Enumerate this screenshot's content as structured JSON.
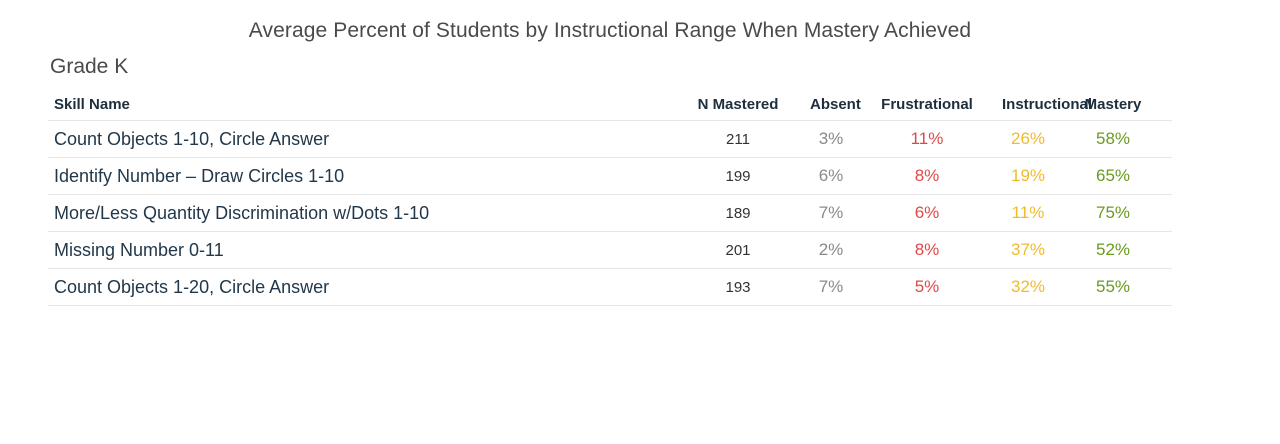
{
  "chart_data": {
    "type": "table",
    "title": "Average Percent of Students by Instructional Range When Mastery Achieved",
    "subtitle": "Grade K",
    "columns": [
      "Skill Name",
      "N Mastered",
      "Absent",
      "Frustrational",
      "Instructional",
      "Mastery"
    ],
    "rows": [
      {
        "skill": "Count Objects 1-10, Circle Answer",
        "n": "211",
        "absent": "3%",
        "frustrational": "11%",
        "instructional": "26%",
        "mastery": "58%"
      },
      {
        "skill": "Identify Number – Draw Circles 1-10",
        "n": "199",
        "absent": "6%",
        "frustrational": "8%",
        "instructional": "19%",
        "mastery": "65%"
      },
      {
        "skill": "More/Less Quantity Discrimination w/Dots 1-10",
        "n": "189",
        "absent": "7%",
        "frustrational": "6%",
        "instructional": "11%",
        "mastery": "75%"
      },
      {
        "skill": "Missing Number 0-11",
        "n": "201",
        "absent": "2%",
        "frustrational": "8%",
        "instructional": "37%",
        "mastery": "52%"
      },
      {
        "skill": "Count Objects 1-20, Circle Answer",
        "n": "193",
        "absent": "7%",
        "frustrational": "5%",
        "instructional": "32%",
        "mastery": "55%"
      }
    ]
  },
  "colors": {
    "absent": "#8a8a8a",
    "frustrational": "#e04848",
    "instructional": "#f0bb2a",
    "mastery": "#6a9a1f"
  }
}
